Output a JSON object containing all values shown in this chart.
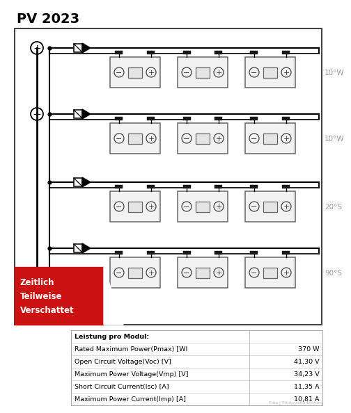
{
  "title": "PV 2023",
  "bg_color": "#ffffff",
  "table_rows": [
    {
      "label": "Leistung pro Modul:",
      "value": "",
      "unit": ""
    },
    {
      "label": "Rated Maximum Power(Pmax) [WI",
      "value": "370",
      "unit": "W"
    },
    {
      "label": "Open Circuit Voltage(Voc) [V]",
      "value": "41,30",
      "unit": "V"
    },
    {
      "label": "Maximum Power Voltage(Vmp) [V]",
      "value": "34,23",
      "unit": "V"
    },
    {
      "label": "Short Circuit Current(Isc) [A]",
      "value": "11,35",
      "unit": "A"
    },
    {
      "label": "Maximum Power Current(Imp) [A]",
      "value": "10,81",
      "unit": "A"
    }
  ],
  "row_labels": [
    "10°W",
    "10°W",
    "20°S",
    "90°S"
  ],
  "shadow_label": "Zeitlich\nTeilweise\nVerschattet",
  "watermark": "Ediz | Photovoltaikforum",
  "diagram_border_color": "#444444",
  "wire_color": "#000000",
  "module_edge_color": "#666666",
  "module_face_color": "#f2f2f2",
  "red_color": "#cc1111",
  "label_gray": "#999999"
}
